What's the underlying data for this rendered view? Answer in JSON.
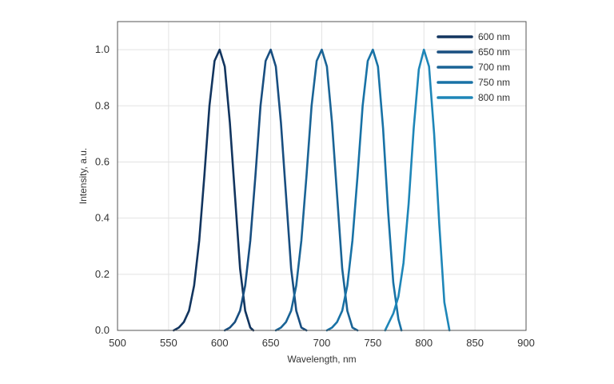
{
  "chart_data": {
    "type": "line",
    "title": "",
    "xlabel": "Wavelength, nm",
    "ylabel": "Intensity, a.u.",
    "xlim": [
      500,
      900
    ],
    "ylim": [
      0,
      1.1
    ],
    "x_ticks": [
      500,
      550,
      600,
      650,
      700,
      750,
      800,
      850,
      900
    ],
    "y_ticks": [
      0.0,
      0.2,
      0.4,
      0.6,
      0.8,
      1.0
    ],
    "grid": true,
    "legend_position": "top-right",
    "series": [
      {
        "name": "600 nm",
        "color": "#12355f",
        "x": [
          555,
          560,
          565,
          570,
          575,
          580,
          585,
          590,
          595,
          600,
          605,
          610,
          615,
          620,
          625,
          630,
          633
        ],
        "y": [
          0.0,
          0.01,
          0.03,
          0.07,
          0.16,
          0.32,
          0.55,
          0.8,
          0.96,
          1.0,
          0.94,
          0.74,
          0.48,
          0.22,
          0.07,
          0.01,
          0.0
        ]
      },
      {
        "name": "650 nm",
        "color": "#184e80",
        "x": [
          605,
          610,
          615,
          620,
          625,
          630,
          635,
          640,
          645,
          650,
          655,
          660,
          665,
          670,
          675,
          680,
          685
        ],
        "y": [
          0.0,
          0.01,
          0.03,
          0.07,
          0.16,
          0.32,
          0.55,
          0.8,
          0.96,
          1.0,
          0.94,
          0.74,
          0.48,
          0.22,
          0.07,
          0.01,
          0.0
        ]
      },
      {
        "name": "700 nm",
        "color": "#1a6496",
        "x": [
          655,
          660,
          665,
          670,
          675,
          680,
          685,
          690,
          695,
          700,
          705,
          710,
          715,
          720,
          725,
          730,
          735
        ],
        "y": [
          0.0,
          0.01,
          0.03,
          0.07,
          0.16,
          0.32,
          0.55,
          0.8,
          0.96,
          1.0,
          0.94,
          0.74,
          0.48,
          0.22,
          0.07,
          0.01,
          0.0
        ]
      },
      {
        "name": "750 nm",
        "color": "#1872a6",
        "x": [
          705,
          710,
          715,
          720,
          725,
          730,
          735,
          740,
          745,
          750,
          755,
          760,
          765,
          770,
          775,
          778
        ],
        "y": [
          0.0,
          0.01,
          0.03,
          0.07,
          0.16,
          0.32,
          0.55,
          0.8,
          0.96,
          1.0,
          0.94,
          0.72,
          0.42,
          0.17,
          0.04,
          0.0
        ]
      },
      {
        "name": "800 nm",
        "color": "#1e86b8",
        "x": [
          762,
          766,
          770,
          775,
          780,
          785,
          790,
          795,
          800,
          805,
          810,
          815,
          820,
          825
        ],
        "y": [
          0.0,
          0.03,
          0.06,
          0.12,
          0.24,
          0.45,
          0.72,
          0.93,
          1.0,
          0.94,
          0.7,
          0.38,
          0.1,
          0.0
        ]
      }
    ]
  }
}
